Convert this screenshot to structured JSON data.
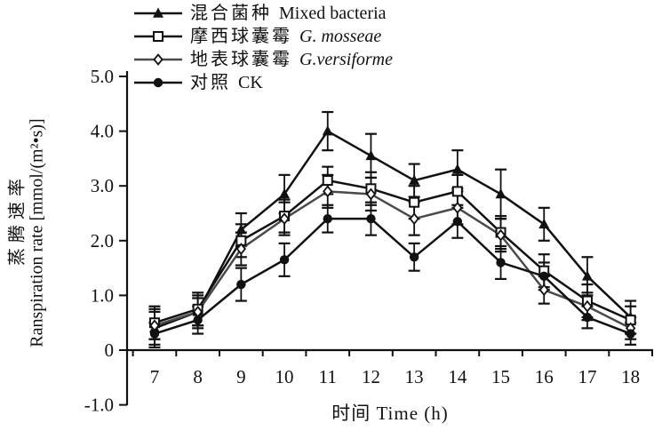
{
  "chart_data": {
    "type": "line",
    "title": "",
    "xlabel": "时间 Time (h)",
    "ylabel_cn": "蒸腾速率",
    "ylabel_en": "Ranspiration rate [mmol/(m²•s)]",
    "x_values": [
      7,
      8,
      9,
      10,
      11,
      12,
      13,
      14,
      15,
      16,
      17,
      18
    ],
    "xtick_labels": [
      "7",
      "8",
      "9",
      "10",
      "11",
      "12",
      "13",
      "14",
      "15",
      "16",
      "17",
      "18"
    ],
    "ytick_values": [
      5,
      4,
      3,
      2,
      1,
      0,
      -1
    ],
    "ytick_labels": [
      "5.0",
      "4.0",
      "3.0",
      "2.0",
      "1.0",
      "0",
      "-1.0"
    ],
    "ylim": [
      -1.0,
      5.0
    ],
    "grid": false,
    "legend_position": "top-left",
    "axis_color": "#111111",
    "series": [
      {
        "name_cn": "混合菌种",
        "name_latin": "Mixed bacteria",
        "latin_italic": false,
        "marker": "triangle-filled",
        "color": "#111111",
        "values": [
          0.4,
          0.7,
          2.2,
          2.85,
          4.0,
          3.55,
          3.1,
          3.3,
          2.85,
          2.3,
          1.35,
          0.6
        ],
        "errors": [
          0.35,
          0.3,
          0.3,
          0.35,
          0.35,
          0.4,
          0.3,
          0.35,
          0.45,
          0.3,
          0.35,
          0.3
        ]
      },
      {
        "name_cn": "摩西球囊霉",
        "name_latin": "G. mosseae",
        "latin_italic": true,
        "marker": "square-open",
        "color": "#111111",
        "values": [
          0.5,
          0.75,
          2.0,
          2.45,
          3.1,
          2.95,
          2.7,
          2.9,
          2.15,
          1.45,
          0.9,
          0.55
        ],
        "errors": [
          0.3,
          0.3,
          0.3,
          0.3,
          0.25,
          0.3,
          0.3,
          0.3,
          0.3,
          0.3,
          0.3,
          0.25
        ]
      },
      {
        "name_cn": "地表球囊霉",
        "name_latin": "G.versiforme",
        "latin_italic": true,
        "marker": "diamond-open",
        "color": "#4a4a4a",
        "values": [
          0.45,
          0.7,
          1.85,
          2.4,
          2.9,
          2.85,
          2.4,
          2.6,
          2.1,
          1.1,
          0.8,
          0.4
        ],
        "errors": [
          0.25,
          0.25,
          0.3,
          0.3,
          0.3,
          0.3,
          0.3,
          0.3,
          0.3,
          0.25,
          0.25,
          0.2
        ]
      },
      {
        "name_cn": "对照",
        "name_latin": "CK",
        "latin_italic": false,
        "marker": "circle-filled",
        "color": "#111111",
        "values": [
          0.3,
          0.55,
          1.2,
          1.65,
          2.4,
          2.4,
          1.7,
          2.35,
          1.6,
          1.35,
          0.6,
          0.3
        ],
        "errors": [
          0.2,
          0.25,
          0.3,
          0.3,
          0.25,
          0.3,
          0.25,
          0.3,
          0.3,
          0.25,
          0.2,
          0.2
        ]
      }
    ]
  }
}
